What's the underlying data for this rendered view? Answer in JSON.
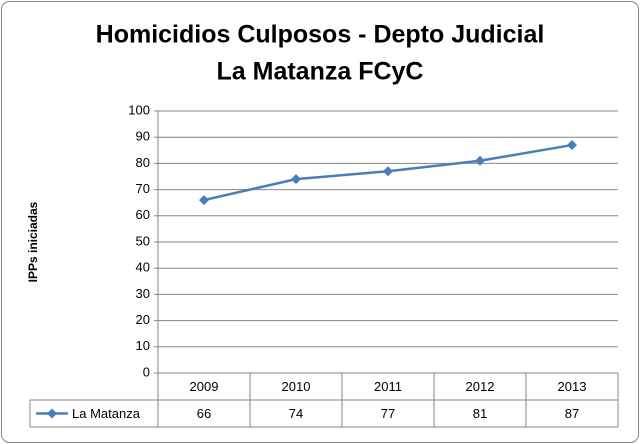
{
  "chart_data": {
    "type": "line",
    "title": [
      "Homicidios Culposos - Depto Judicial",
      "La Matanza FCyC"
    ],
    "y_label": "IPPs iniciadas",
    "categories": [
      "2009",
      "2010",
      "2011",
      "2012",
      "2013"
    ],
    "series": [
      {
        "name": "La Matanza",
        "color": "#4a7ebb",
        "values": [
          66,
          74,
          77,
          81,
          87
        ]
      }
    ],
    "ylim": [
      0,
      100
    ],
    "yticks": [
      0,
      10,
      20,
      30,
      40,
      50,
      60,
      70,
      80,
      90,
      100
    ],
    "grid": true,
    "data_table": true
  }
}
